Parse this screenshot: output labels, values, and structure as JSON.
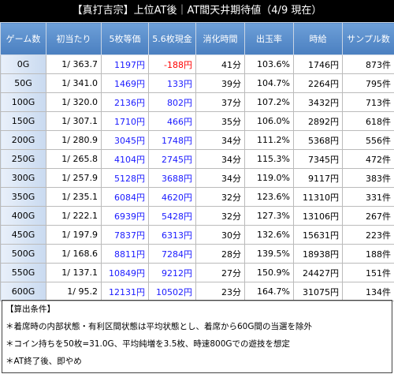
{
  "header": {
    "title": "【真打吉宗】上位AT後｜AT間天井期待値（4/9 現在）"
  },
  "table": {
    "columns": [
      "ゲーム数",
      "初当たり",
      "5枚等価",
      "5.6枚現金",
      "消化時間",
      "出玉率",
      "時給",
      "サンプル数"
    ],
    "rows": [
      [
        "0G",
        "1/ 363.7",
        "1197円",
        "-188円",
        "41分",
        "103.6%",
        "1746円",
        "873件"
      ],
      [
        "50G",
        "1/ 341.0",
        "1469円",
        "133円",
        "39分",
        "104.7%",
        "2264円",
        "795件"
      ],
      [
        "100G",
        "1/ 320.0",
        "2136円",
        "802円",
        "37分",
        "107.2%",
        "3432円",
        "713件"
      ],
      [
        "150G",
        "1/ 307.1",
        "1710円",
        "466円",
        "35分",
        "106.0%",
        "2892円",
        "618件"
      ],
      [
        "200G",
        "1/ 280.9",
        "3045円",
        "1748円",
        "34分",
        "111.2%",
        "5368円",
        "556件"
      ],
      [
        "250G",
        "1/ 265.8",
        "4104円",
        "2745円",
        "34分",
        "115.3%",
        "7345円",
        "472件"
      ],
      [
        "300G",
        "1/ 257.9",
        "5128円",
        "3688円",
        "34分",
        "119.0%",
        "9117円",
        "383件"
      ],
      [
        "350G",
        "1/ 235.1",
        "6084円",
        "4620円",
        "32分",
        "123.6%",
        "11310円",
        "331件"
      ],
      [
        "400G",
        "1/ 222.1",
        "6939円",
        "5428円",
        "32分",
        "127.3%",
        "13106円",
        "267件"
      ],
      [
        "450G",
        "1/ 197.9",
        "7837円",
        "6313円",
        "30分",
        "132.6%",
        "15631円",
        "223件"
      ],
      [
        "500G",
        "1/ 168.6",
        "8811円",
        "7284円",
        "28分",
        "139.5%",
        "18938円",
        "188件"
      ],
      [
        "550G",
        "1/ 137.1",
        "10849円",
        "9212円",
        "27分",
        "150.9%",
        "24427円",
        "151件"
      ],
      [
        "600G",
        "1/ 95.2",
        "12131円",
        "10502円",
        "23分",
        "164.7%",
        "31075円",
        "134件"
      ]
    ]
  },
  "notes": {
    "heading": "【算出条件】",
    "items": [
      "＊着席時の内部状態・有利区間状態は平均状態とし、着席から60G間の当選を除外",
      "＊コイン持ちを50枚=31.0G、平均純増を3.5枚、時速800Gでの遊技を想定",
      "＊AT終了後、即やめ"
    ]
  }
}
